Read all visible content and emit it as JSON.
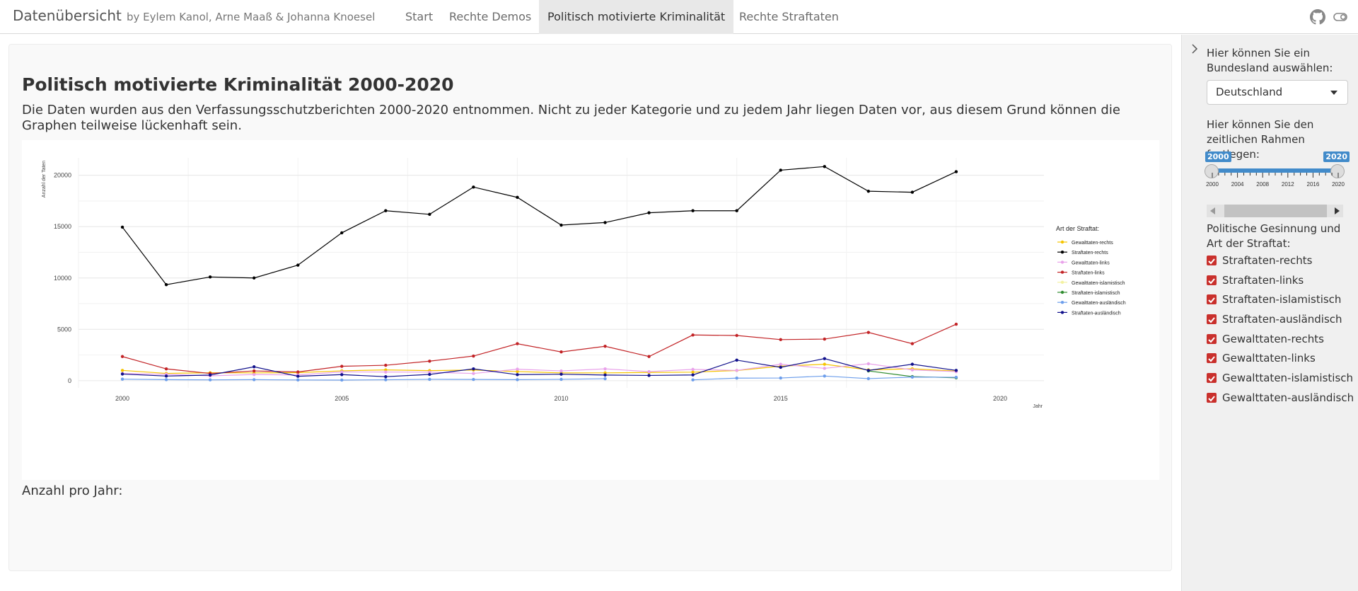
{
  "navbar": {
    "brand": "Datenübersicht",
    "subtitle": "by Eylem Kanol, Arne Maaß & Johanna Knoesel",
    "tabs": [
      {
        "label": "Start"
      },
      {
        "label": "Rechte Demos"
      },
      {
        "label": "Politisch motivierte Kriminalität",
        "active": true
      },
      {
        "label": "Rechte Straftaten"
      }
    ],
    "icons": [
      "github-icon",
      "toggle-icon"
    ]
  },
  "main": {
    "title": "Politisch motivierte Kriminalität 2000-2020",
    "description": "Die Daten wurden aus den Verfassungsschutzberichten 2000-2020 entnommen. Nicht zu jeder Kategorie und zu jedem Jahr liegen Daten vor, aus diesem Grund können die Graphen teilweise lückenhaft sein.",
    "count_label": "Anzahl pro Jahr:"
  },
  "sidebar": {
    "state_label": "Hier können Sie ein Bundesland auswählen:",
    "state_value": "Deutschland",
    "range_label": "Hier können Sie den zeitlichen Rahmen festlegen:",
    "range_min": "2000",
    "range_max": "2020",
    "range_ticks": [
      "2000",
      "2004",
      "2008",
      "2012",
      "2016",
      "2020"
    ],
    "categories_label": "Politische Gesinnung und Art der Straftat:",
    "checkboxes": [
      {
        "label": "Straftaten-rechts",
        "checked": true
      },
      {
        "label": "Straftaten-links",
        "checked": true
      },
      {
        "label": "Straftaten-islamistisch",
        "checked": true
      },
      {
        "label": "Straftaten-ausländisch",
        "checked": true
      },
      {
        "label": "Gewalttaten-rechts",
        "checked": true
      },
      {
        "label": "Gewalttaten-links",
        "checked": true
      },
      {
        "label": "Gewalttaten-islamistisch",
        "checked": true
      },
      {
        "label": "Gewalttaten-ausländisch",
        "checked": true
      }
    ]
  },
  "colors": {
    "accent": "#428bca",
    "checkbox": "#c9302c",
    "active_tab": "#e8e8e8"
  },
  "chart_data": {
    "type": "line",
    "xlabel": "Jahr",
    "ylabel": "Anzahl der Taten",
    "legend_title": "Art der Straftat:",
    "legend_position": "right",
    "xlim": [
      1999,
      2021
    ],
    "ylim": [
      -700,
      21700
    ],
    "x_ticks": [
      2000,
      2005,
      2010,
      2015,
      2020
    ],
    "y_ticks": [
      0,
      5000,
      10000,
      15000,
      20000
    ],
    "grid": true,
    "x": [
      2000,
      2001,
      2002,
      2003,
      2004,
      2005,
      2006,
      2007,
      2008,
      2009,
      2010,
      2011,
      2012,
      2013,
      2014,
      2015,
      2016,
      2017,
      2018,
      2019
    ],
    "series": [
      {
        "name": "Gewalttaten-rechts",
        "color": "#f5c400",
        "values": [
          1000,
          710,
          770,
          760,
          780,
          960,
          1050,
          980,
          1040,
          890,
          760,
          760,
          800,
          830,
          990,
          1410,
          1600,
          1050,
          1160,
          930
        ]
      },
      {
        "name": "Straftaten-rechts",
        "color": "#000000",
        "values": [
          14950,
          9350,
          10100,
          10000,
          11250,
          14400,
          16550,
          16200,
          18850,
          17850,
          15150,
          15400,
          16350,
          16550,
          16550,
          20500,
          20850,
          18450,
          18350,
          20350
        ]
      },
      {
        "name": "Gewalttaten-links",
        "color": "#e9a2ea",
        "values": [
          700,
          620,
          470,
          600,
          560,
          850,
          840,
          830,
          700,
          1120,
          950,
          1150,
          880,
          1100,
          1000,
          1600,
          1200,
          1650,
          1050,
          880
        ]
      },
      {
        "name": "Straftaten-links",
        "color": "#c22326",
        "values": [
          2350,
          1150,
          700,
          950,
          850,
          1400,
          1500,
          1900,
          2400,
          3600,
          2800,
          3350,
          2350,
          4450,
          4400,
          4000,
          4050,
          4700,
          3600,
          5500
        ]
      },
      {
        "name": "Gewalttaten-islamistisch",
        "color": "#f3f1a0",
        "values": [
          null,
          null,
          null,
          null,
          null,
          null,
          null,
          null,
          null,
          null,
          null,
          null,
          null,
          null,
          null,
          null,
          null,
          null,
          null,
          null
        ]
      },
      {
        "name": "Straftaten-islamistisch",
        "color": "#2e8b2e",
        "values": [
          null,
          null,
          null,
          null,
          null,
          null,
          null,
          null,
          null,
          null,
          null,
          null,
          null,
          null,
          null,
          null,
          null,
          950,
          400,
          280
        ]
      },
      {
        "name": "Gewalttaten-ausländisch",
        "color": "#6d9eeb",
        "values": [
          150,
          100,
          80,
          100,
          70,
          60,
          90,
          130,
          120,
          100,
          130,
          190,
          null,
          80,
          250,
          260,
          450,
          200,
          350,
          330
        ]
      },
      {
        "name": "Straftaten-ausländisch",
        "color": "#10108b",
        "values": [
          650,
          450,
          550,
          1350,
          430,
          590,
          390,
          610,
          1150,
          590,
          630,
          550,
          510,
          560,
          2000,
          1300,
          2150,
          1000,
          1600,
          1000
        ]
      }
    ]
  }
}
